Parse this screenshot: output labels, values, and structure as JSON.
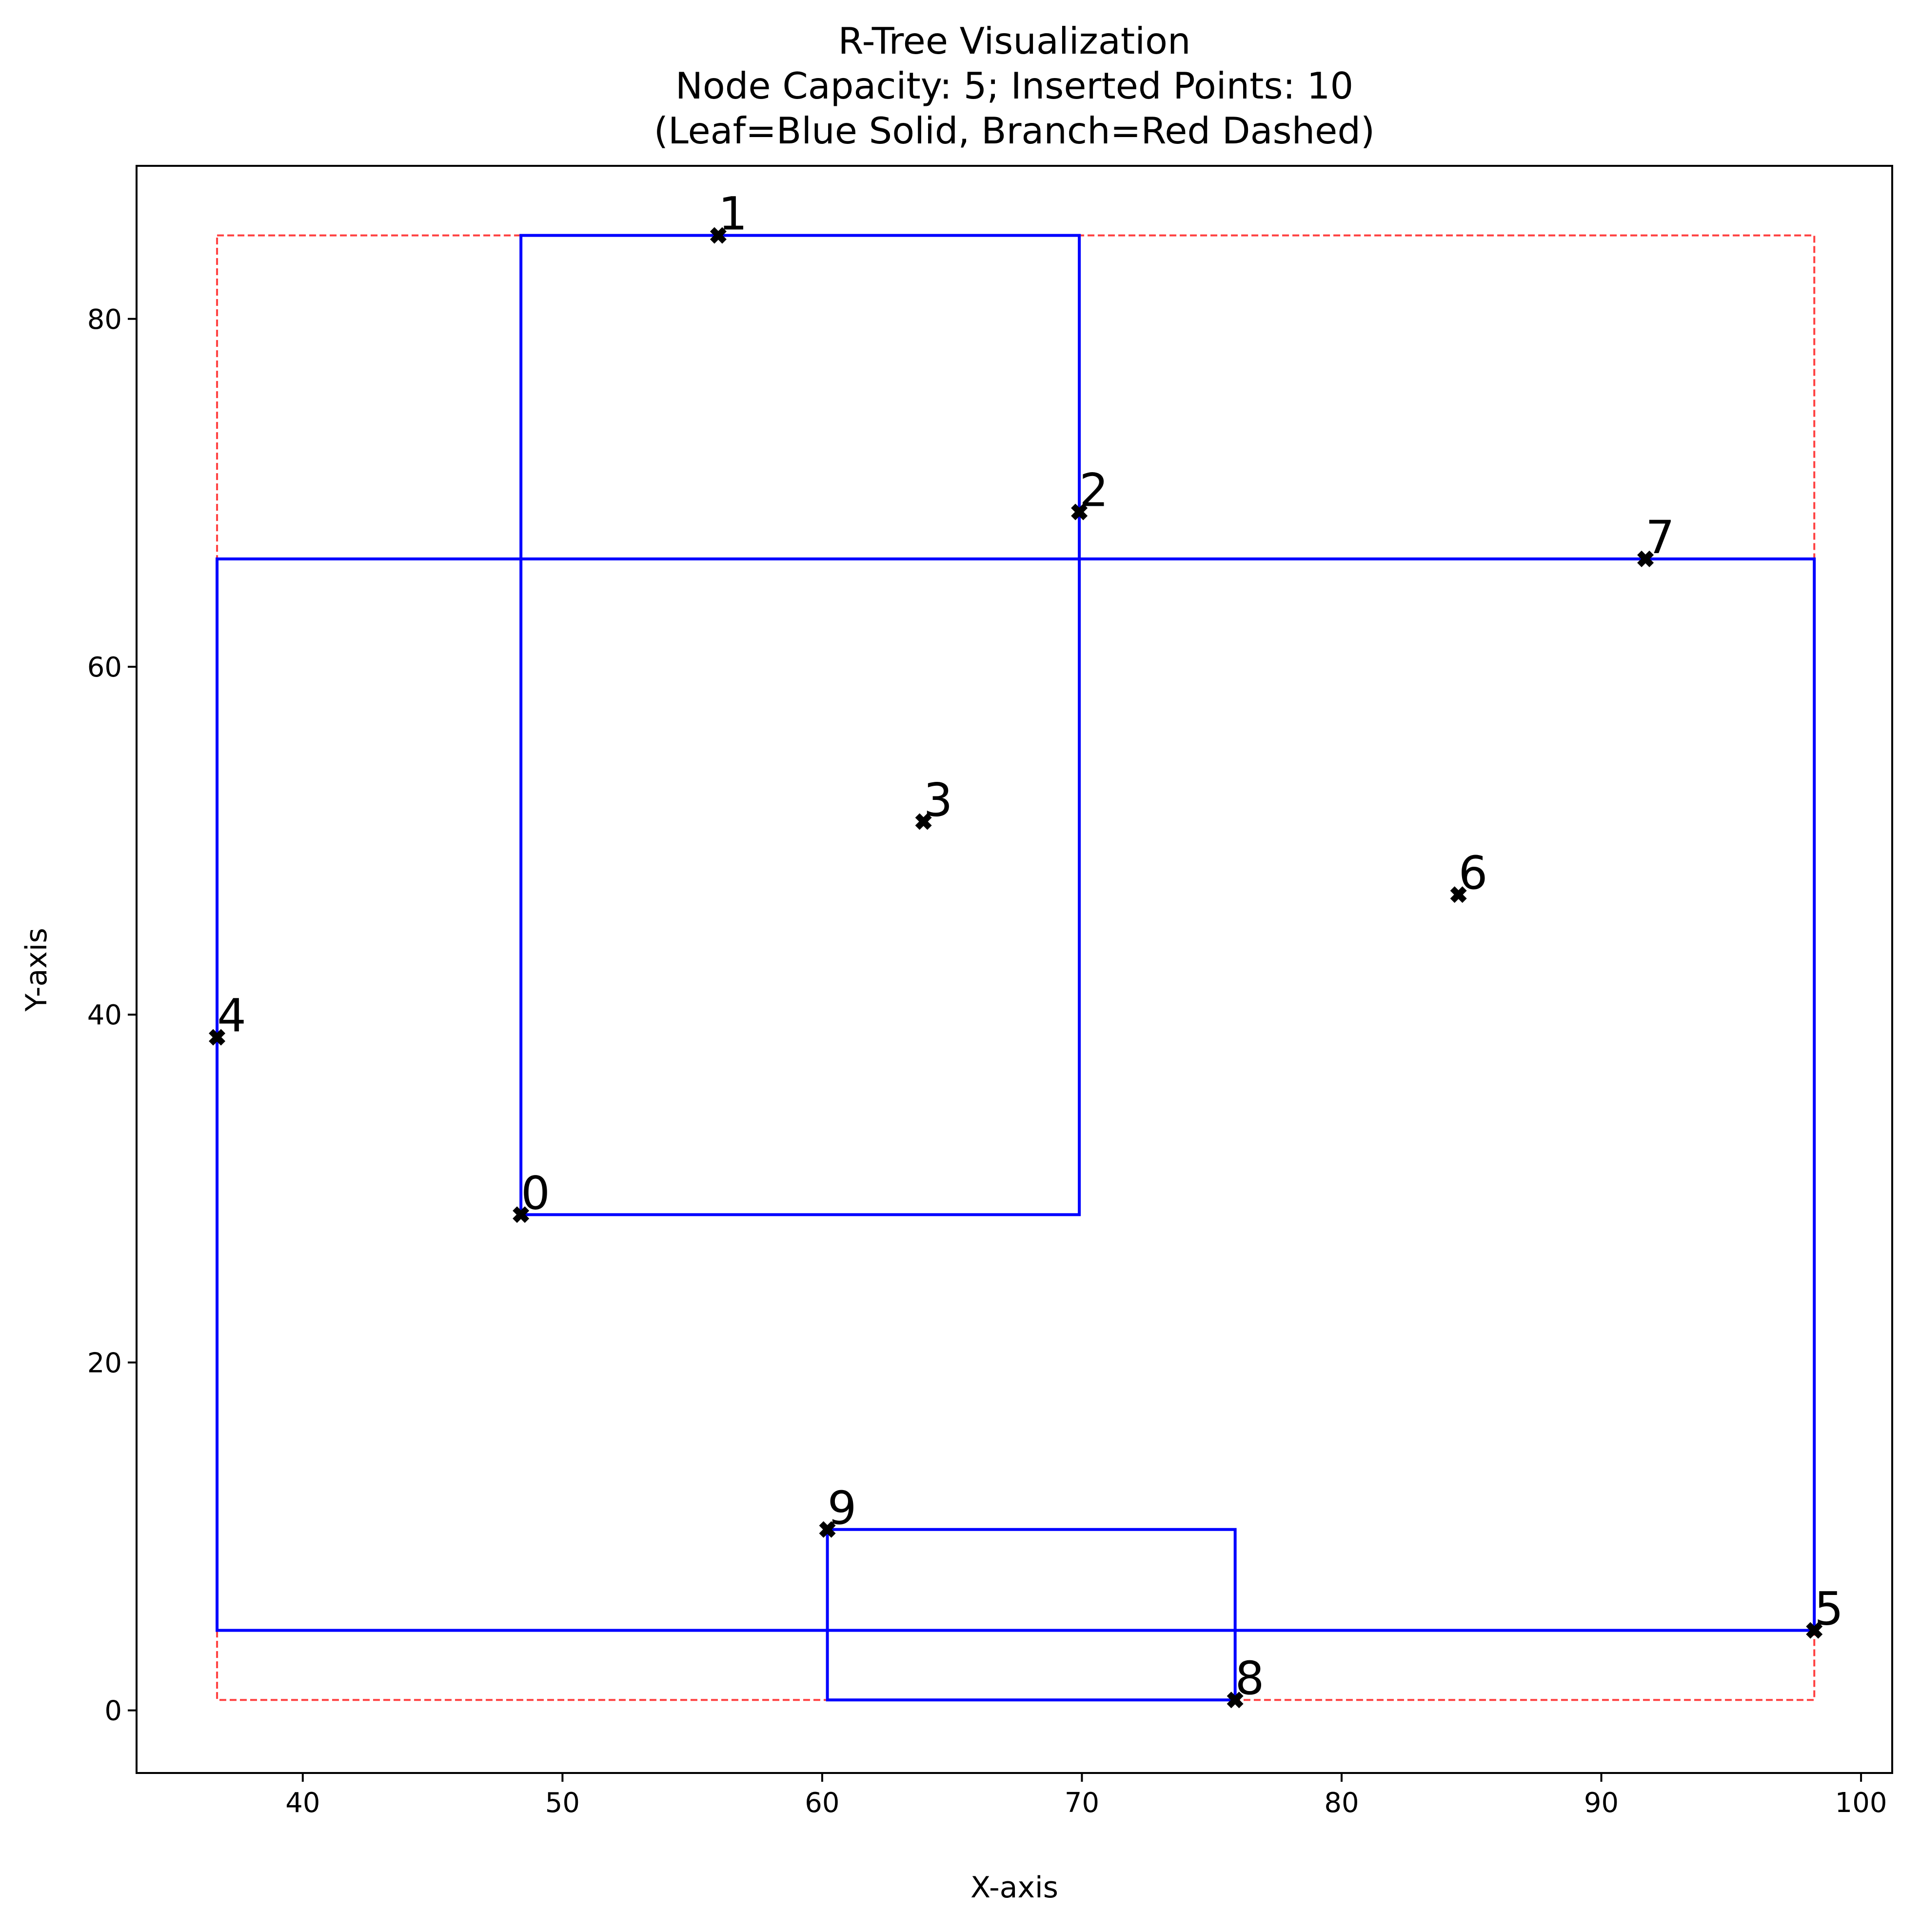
{
  "chart_data": {
    "type": "scatter",
    "title_lines": [
      "R-Tree Visualization",
      "Node Capacity: 5; Inserted Points: 10",
      "(Leaf=Blue Solid, Branch=Red Dashed)"
    ],
    "xlabel": "X-axis",
    "ylabel": "Y-axis",
    "xlim": [
      33.6,
      101.2
    ],
    "ylim": [
      -3.6,
      88.8
    ],
    "xticks": [
      40,
      50,
      60,
      70,
      80,
      90,
      100
    ],
    "yticks": [
      0,
      20,
      40,
      60,
      80
    ],
    "grid": false,
    "marker": "X",
    "marker_color": "#000000",
    "points": [
      {
        "label": "0",
        "x": 48.4,
        "y": 28.5
      },
      {
        "label": "1",
        "x": 56.0,
        "y": 84.8
      },
      {
        "label": "2",
        "x": 69.9,
        "y": 68.9
      },
      {
        "label": "3",
        "x": 63.9,
        "y": 51.1
      },
      {
        "label": "4",
        "x": 36.7,
        "y": 38.7
      },
      {
        "label": "5",
        "x": 98.2,
        "y": 4.6
      },
      {
        "label": "6",
        "x": 84.5,
        "y": 46.9
      },
      {
        "label": "7",
        "x": 91.7,
        "y": 66.2
      },
      {
        "label": "8",
        "x": 75.9,
        "y": 0.6
      },
      {
        "label": "9",
        "x": 60.2,
        "y": 10.4
      }
    ],
    "rectangles": [
      {
        "kind": "branch",
        "color": "#ff0000",
        "style": "dashed",
        "x0": 36.7,
        "y0": 0.6,
        "x1": 98.2,
        "y1": 84.8
      },
      {
        "kind": "leaf",
        "color": "#0000ff",
        "style": "solid",
        "x0": 48.4,
        "y0": 28.5,
        "x1": 69.9,
        "y1": 84.8
      },
      {
        "kind": "leaf",
        "color": "#0000ff",
        "style": "solid",
        "x0": 36.7,
        "y0": 4.6,
        "x1": 98.2,
        "y1": 66.2
      },
      {
        "kind": "leaf",
        "color": "#0000ff",
        "style": "solid",
        "x0": 60.2,
        "y0": 0.6,
        "x1": 75.9,
        "y1": 10.4
      }
    ]
  }
}
